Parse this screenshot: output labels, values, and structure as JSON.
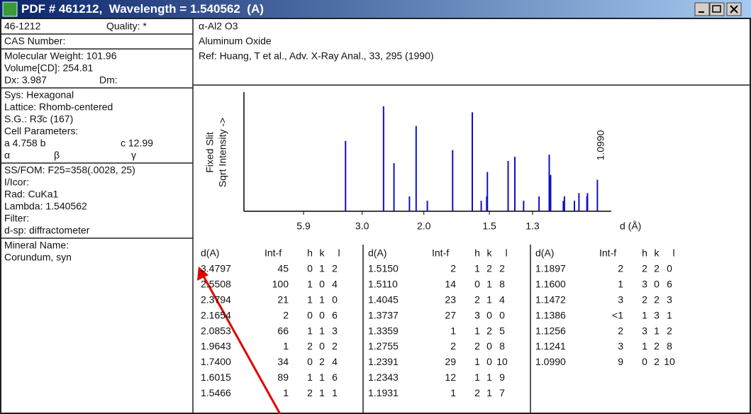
{
  "window": {
    "title_prefix": "PDF # 461212,  Wavelength = ",
    "wavelength": 1.540562,
    "title_suffix": "  (A)"
  },
  "left": {
    "sections": [
      [
        [
          "46-1212",
          "Quality: *"
        ]
      ],
      [
        [
          "CAS Number:"
        ]
      ],
      [
        [
          "Molecular Weight:  101.96"
        ],
        [
          "Volume[CD]:  254.81"
        ],
        [
          "Dx:  3.987",
          "Dm:"
        ]
      ],
      [
        [
          "Sys: Hexagonal"
        ],
        [
          "Lattice: Rhomb-centered"
        ],
        [
          "S.G.: R3̄c (167)"
        ],
        [
          "Cell Parameters:"
        ],
        [
          "a 4.758   b",
          "c 12.99"
        ],
        [
          "α",
          "β",
          "γ"
        ]
      ],
      [
        [
          "SS/FOM: F25=358(.0028, 25)"
        ],
        [
          "I/Icor:"
        ],
        [
          "Rad: CuKa1"
        ],
        [
          "Lambda: 1.540562"
        ],
        [
          "Filter:"
        ],
        [
          "d-sp: diffractometer"
        ]
      ],
      [
        [
          "Mineral Name:"
        ],
        [
          "Corundum, syn"
        ]
      ]
    ]
  },
  "header": {
    "formula": "α-Al2 O3",
    "name": "Aluminum Oxide",
    "ref": "Ref: Huang, T et al., Adv. X-Ray Anal., 33, 295 (1990)"
  },
  "pattern": {
    "y_label_1": "Fixed   Slit",
    "y_label_2": "Sqrt  Intensity  ->",
    "x_label": "d (Å)",
    "x_ticks": [
      5.9,
      {
        "value": 3,
        "label": "3.0"
      },
      {
        "value": 2,
        "label": "2.0"
      },
      1.5,
      1.3
    ],
    "annotation": "1.0990"
  },
  "table": {
    "columns": [
      "d(A)",
      "Int-f",
      "h",
      "k",
      "l"
    ],
    "rows": [
      [
        "3.4797",
        45,
        0,
        1,
        2
      ],
      [
        "2.5508",
        100,
        1,
        0,
        4
      ],
      [
        "2.3794",
        21,
        1,
        1,
        0
      ],
      [
        "2.1654",
        2,
        0,
        0,
        6
      ],
      [
        "2.0853",
        66,
        1,
        1,
        3
      ],
      [
        "1.9643",
        1,
        2,
        0,
        2
      ],
      [
        "1.7400",
        34,
        0,
        2,
        4
      ],
      [
        "1.6015",
        89,
        1,
        1,
        6
      ],
      [
        "1.5466",
        1,
        2,
        1,
        1
      ],
      [
        "1.5150",
        2,
        1,
        2,
        2
      ],
      [
        "1.5110",
        14,
        0,
        1,
        8
      ],
      [
        "1.4045",
        23,
        2,
        1,
        4
      ],
      [
        "1.3737",
        27,
        3,
        0,
        0
      ],
      [
        "1.3359",
        1,
        1,
        2,
        5
      ],
      [
        "1.2755",
        2,
        2,
        0,
        8
      ],
      [
        "1.2391",
        29,
        1,
        0,
        10
      ],
      [
        "1.2343",
        12,
        1,
        1,
        9
      ],
      [
        "1.1931",
        1,
        2,
        1,
        7
      ],
      [
        "1.1897",
        2,
        2,
        2,
        0
      ],
      [
        "1.1600",
        1,
        3,
        0,
        6
      ],
      [
        "1.1472",
        3,
        2,
        2,
        3
      ],
      [
        "1.1386",
        "<1",
        1,
        3,
        1
      ],
      [
        "1.1256",
        2,
        3,
        1,
        2
      ],
      [
        "1.1241",
        3,
        1,
        2,
        8
      ],
      [
        "1.0990",
        9,
        0,
        2,
        10
      ]
    ]
  }
}
